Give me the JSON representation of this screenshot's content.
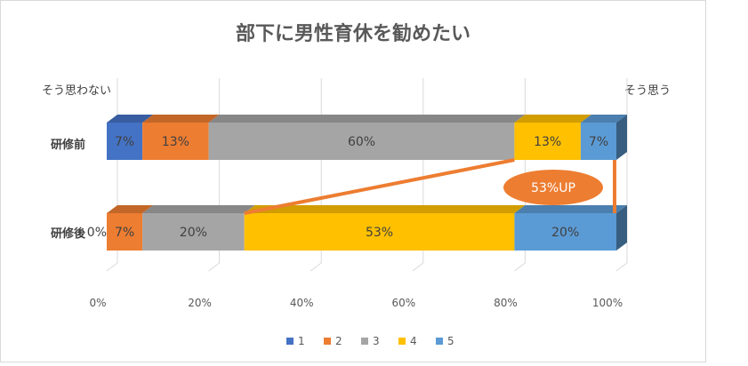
{
  "chart_data": {
    "type": "bar",
    "orientation": "horizontal",
    "stacked": "percent",
    "three_d": true,
    "title": "部下に男性育休を勧めたい",
    "left_note": "そう思わない",
    "right_note": "そう思う",
    "categories": [
      "研修前",
      "研修後"
    ],
    "series": [
      {
        "name": "1",
        "color": "#4472c4",
        "values": [
          7,
          0
        ],
        "labels": [
          "7%",
          "0%"
        ]
      },
      {
        "name": "2",
        "color": "#ed7d31",
        "values": [
          13,
          7
        ],
        "labels": [
          "13%",
          "7%"
        ]
      },
      {
        "name": "3",
        "color": "#a5a5a5",
        "values": [
          60,
          20
        ],
        "labels": [
          "60%",
          "20%"
        ]
      },
      {
        "name": "4",
        "color": "#ffc000",
        "values": [
          13,
          53
        ],
        "labels": [
          "13%",
          "53%"
        ]
      },
      {
        "name": "5",
        "color": "#5b9bd5",
        "values": [
          7,
          20
        ],
        "labels": [
          "7%",
          "20%"
        ]
      }
    ],
    "xlim": [
      0,
      100
    ],
    "x_ticks": [
      "0%",
      "20%",
      "40%",
      "60%",
      "80%",
      "100%"
    ],
    "grid": true,
    "legend_position": "bottom",
    "annotation": {
      "text": "53%UP",
      "color": "#ed7d31"
    }
  }
}
